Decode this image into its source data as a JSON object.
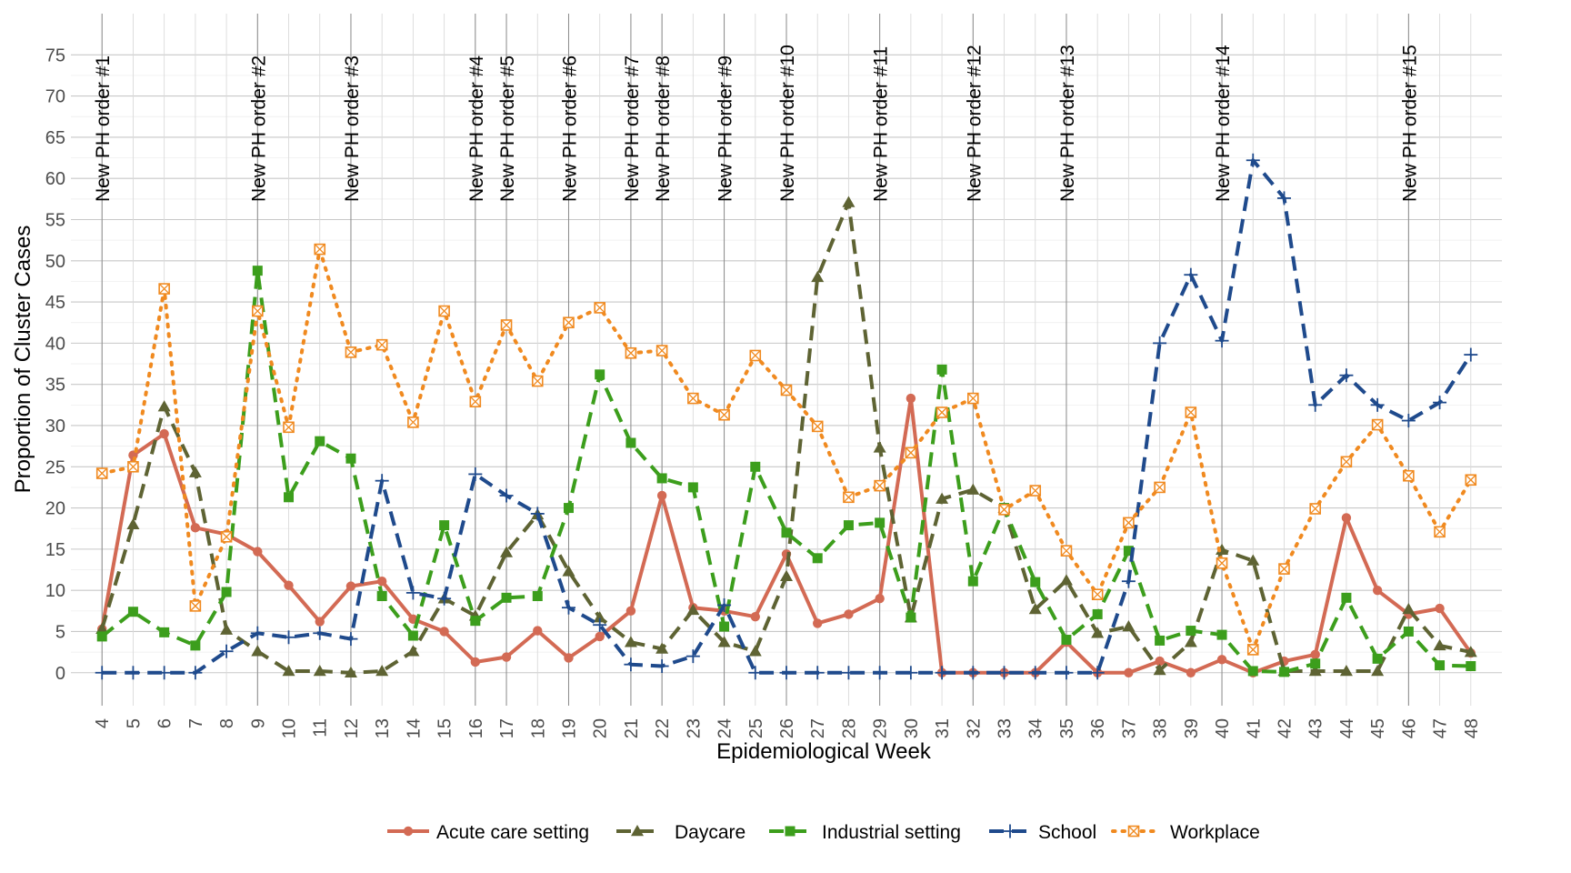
{
  "chart_data": {
    "type": "line",
    "xlabel": "Epidemiological Week",
    "ylabel": "Proportion of Cluster Cases",
    "x": [
      4,
      5,
      6,
      7,
      8,
      9,
      10,
      11,
      12,
      13,
      14,
      15,
      16,
      17,
      18,
      19,
      20,
      21,
      22,
      23,
      24,
      25,
      26,
      27,
      28,
      29,
      30,
      31,
      32,
      33,
      34,
      35,
      36,
      37,
      38,
      39,
      40,
      41,
      42,
      43,
      44,
      45,
      46,
      47,
      48
    ],
    "xlim": [
      3,
      49
    ],
    "ylim": [
      -4,
      80
    ],
    "yticks": [
      0,
      5,
      10,
      15,
      20,
      25,
      30,
      35,
      40,
      45,
      50,
      55,
      60,
      65,
      70,
      75
    ],
    "grid": true,
    "legend_position": "bottom",
    "series": [
      {
        "name": "Acute care setting",
        "color": "#d36a54",
        "dash": "solid",
        "marker": "circle",
        "values": [
          5.3,
          26.4,
          29.0,
          17.6,
          16.8,
          14.7,
          10.6,
          6.2,
          10.5,
          11.1,
          6.5,
          5.0,
          1.3,
          1.9,
          5.1,
          1.8,
          4.4,
          7.5,
          21.5,
          7.9,
          7.5,
          6.8,
          14.4,
          6.0,
          7.1,
          9.0,
          33.3,
          0,
          0,
          0,
          0,
          3.7,
          0,
          0,
          1.4,
          0,
          1.6,
          0,
          1.4,
          2.2,
          18.8,
          10.0,
          7.1,
          7.8,
          2.4
        ]
      },
      {
        "name": "Daycare",
        "color": "#5e6333",
        "dash": "dashed",
        "marker": "triangle",
        "values": [
          5.3,
          18.0,
          32.3,
          24.3,
          5.2,
          2.6,
          0.2,
          0.2,
          0,
          0.2,
          2.6,
          9.0,
          6.9,
          14.6,
          19.2,
          12.3,
          6.7,
          3.7,
          2.9,
          7.6,
          3.7,
          2.6,
          11.7,
          48.0,
          57.1,
          27.3,
          6.7,
          21.1,
          22.2,
          20.0,
          7.7,
          11.2,
          4.8,
          5.6,
          0.3,
          3.7,
          14.9,
          13.6,
          0.2,
          0.2,
          0.2,
          0.2,
          7.7,
          3.3,
          2.5
        ]
      },
      {
        "name": "Industrial setting",
        "color": "#3c9e1c",
        "dash": "dashed",
        "marker": "square",
        "values": [
          4.4,
          7.4,
          4.9,
          3.3,
          9.8,
          48.8,
          21.3,
          28.1,
          26.0,
          9.3,
          4.5,
          17.9,
          6.3,
          9.1,
          9.3,
          20.0,
          36.2,
          27.9,
          23.6,
          22.5,
          5.6,
          25.0,
          17.0,
          13.9,
          17.9,
          18.2,
          6.7,
          36.8,
          11.1,
          20.0,
          11.0,
          4.0,
          7.1,
          14.8,
          3.9,
          5.1,
          4.6,
          0.2,
          0.1,
          1.1,
          9.1,
          1.7,
          5.0,
          0.9,
          0.8
        ]
      },
      {
        "name": "School",
        "color": "#1f4a8c",
        "dash": "dashed",
        "marker": "plus",
        "values": [
          0,
          0,
          0,
          0,
          2.6,
          4.8,
          4.3,
          4.8,
          4.1,
          23.3,
          9.7,
          9.0,
          24.1,
          21.5,
          19.3,
          7.9,
          5.8,
          1.0,
          0.8,
          2.0,
          8.2,
          0,
          0,
          0,
          0,
          0,
          0,
          0,
          0,
          0,
          0,
          0,
          0,
          11.1,
          40.0,
          48.3,
          40.3,
          62.2,
          57.6,
          32.5,
          36.1,
          32.5,
          30.6,
          32.8,
          38.6
        ]
      },
      {
        "name": "Workplace",
        "color": "#f08a20",
        "dash": "dotted",
        "marker": "boxcross",
        "values": [
          24.2,
          25.0,
          46.6,
          8.1,
          16.5,
          43.9,
          29.8,
          51.4,
          38.9,
          39.8,
          30.4,
          43.9,
          32.9,
          42.2,
          35.4,
          42.5,
          44.3,
          38.8,
          39.1,
          33.3,
          31.3,
          38.5,
          34.3,
          29.9,
          21.3,
          22.7,
          26.7,
          31.6,
          33.3,
          19.8,
          22.1,
          14.8,
          9.5,
          18.2,
          22.5,
          31.6,
          13.3,
          2.8,
          12.6,
          19.9,
          25.6,
          30.1,
          23.9,
          17.1,
          23.4
        ]
      }
    ],
    "annotations": {
      "type": "vertical_lines",
      "lines": [
        {
          "x": 4,
          "label": "New PH order #1"
        },
        {
          "x": 9,
          "label": "New PH order #2"
        },
        {
          "x": 12,
          "label": "New PH order #3"
        },
        {
          "x": 16,
          "label": "New PH order #4"
        },
        {
          "x": 17,
          "label": "New PH order #5"
        },
        {
          "x": 19,
          "label": "New PH order #6"
        },
        {
          "x": 21,
          "label": "New PH order #7"
        },
        {
          "x": 22,
          "label": "New PH order #8"
        },
        {
          "x": 24,
          "label": "New PH order #9"
        },
        {
          "x": 26,
          "label": "New PH order #10"
        },
        {
          "x": 29,
          "label": "New PH order #11"
        },
        {
          "x": 32,
          "label": "New PH order #12"
        },
        {
          "x": 35,
          "label": "New PH order #13"
        },
        {
          "x": 40,
          "label": "New PH order #14"
        },
        {
          "x": 46,
          "label": "New PH order #15"
        }
      ]
    }
  }
}
